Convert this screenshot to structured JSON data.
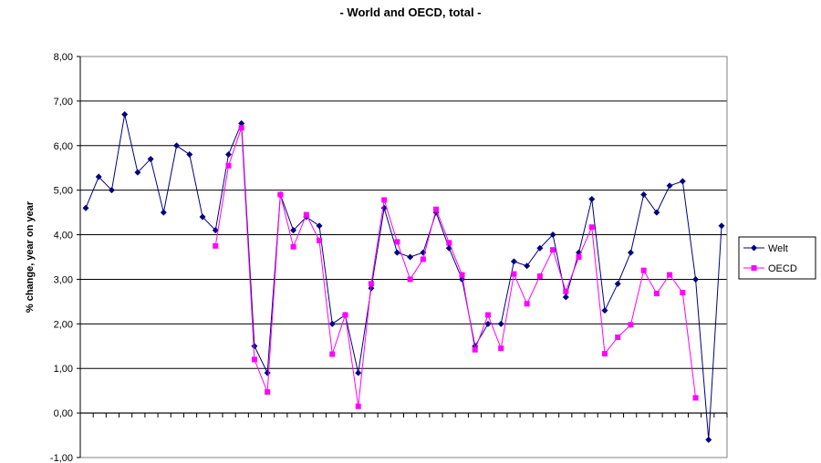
{
  "chart_data": {
    "type": "line",
    "title": "- World and OECD, total -",
    "xlabel": "",
    "ylabel": "% change, year on year",
    "ylim": [
      -1,
      8
    ],
    "y_ticks": [
      "-1,00",
      "0,00",
      "1,00",
      "2,00",
      "3,00",
      "4,00",
      "5,00",
      "6,00",
      "7,00",
      "8,00"
    ],
    "grid": "horizontal",
    "legend_position": "right",
    "x_count": 50,
    "series": [
      {
        "name": "Welt",
        "color": "#000080",
        "marker": "diamond",
        "values": [
          4.6,
          5.3,
          5.0,
          6.7,
          5.4,
          5.7,
          4.5,
          6.0,
          5.8,
          4.4,
          4.1,
          5.8,
          6.5,
          1.5,
          0.9,
          4.9,
          4.1,
          4.4,
          4.2,
          2.0,
          2.2,
          0.9,
          2.8,
          4.6,
          3.6,
          3.5,
          3.6,
          4.5,
          3.7,
          3.0,
          1.5,
          2.0,
          2.0,
          3.4,
          3.3,
          3.7,
          4.0,
          2.6,
          3.6,
          4.8,
          2.3,
          2.9,
          3.6,
          4.9,
          4.5,
          5.1,
          5.2,
          3.0,
          -0.6,
          4.2
        ]
      },
      {
        "name": "OECD",
        "color": "#FF00FF",
        "marker": "square",
        "values": [
          null,
          null,
          null,
          null,
          null,
          null,
          null,
          null,
          null,
          null,
          3.75,
          5.55,
          6.4,
          1.2,
          0.47,
          4.9,
          3.73,
          4.45,
          3.87,
          1.32,
          2.2,
          0.15,
          2.9,
          4.78,
          3.84,
          3.0,
          3.45,
          4.57,
          3.82,
          3.1,
          1.42,
          2.2,
          1.45,
          3.12,
          2.45,
          3.07,
          3.66,
          2.73,
          3.5,
          4.17,
          1.33,
          1.7,
          1.98,
          3.2,
          2.68,
          3.1,
          2.7,
          0.34,
          null,
          null
        ]
      }
    ]
  }
}
